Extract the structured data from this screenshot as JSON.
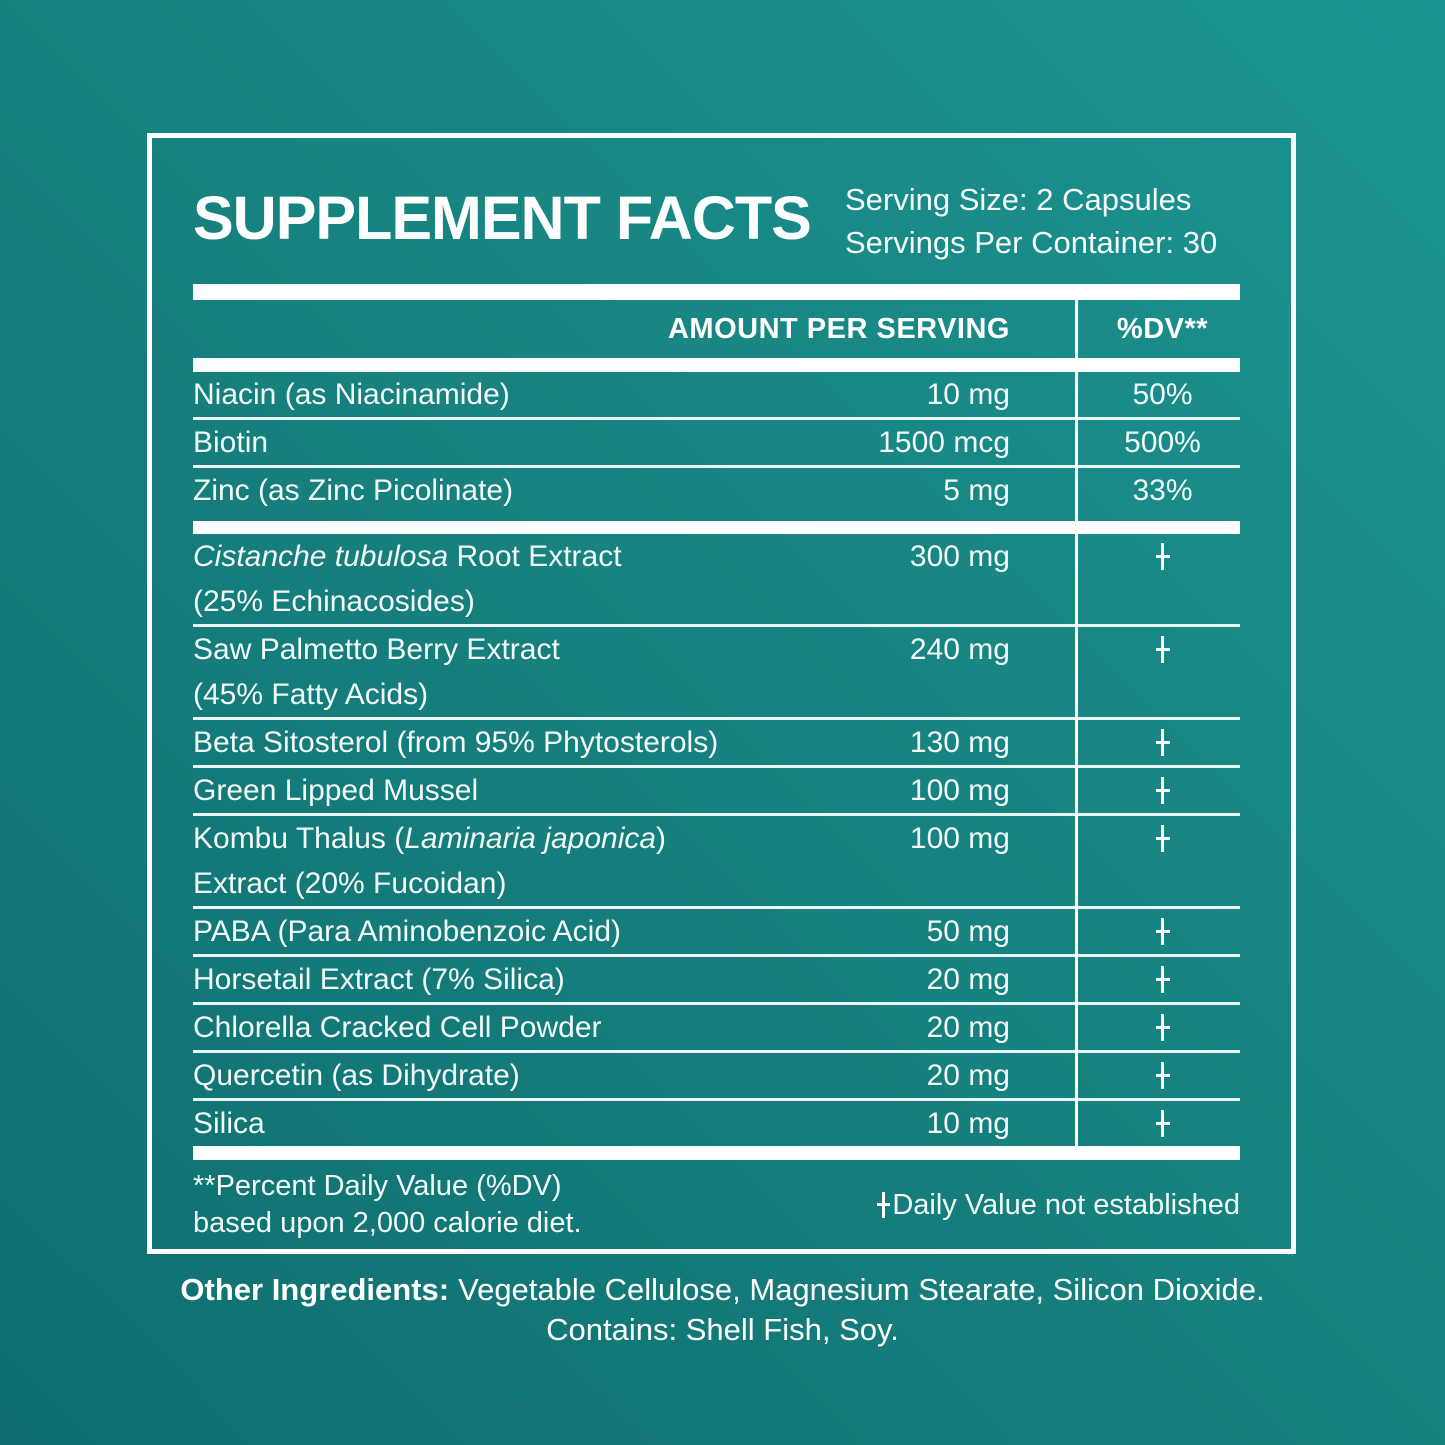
{
  "colors": {
    "background_light": "#1b9593",
    "background_dark": "#0e6e70",
    "line_white": "#ffffff",
    "text_white": "#f2faf9"
  },
  "panel": {
    "title": "SUPPLEMENT FACTS",
    "serving_size": "Serving Size: 2 Capsules",
    "servings_per_container": "Servings Per Container: 30"
  },
  "table": {
    "amount_header": "AMOUNT PER SERVING",
    "dv_header": "%DV**",
    "dagger_symbol": "†",
    "groups": [
      {
        "rows": [
          {
            "name_parts": [
              {
                "text": "Niacin (as Niacinamide)",
                "italic": false
              }
            ],
            "amount": "10 mg",
            "dv": "50%"
          },
          {
            "name_parts": [
              {
                "text": "Biotin",
                "italic": false
              }
            ],
            "amount": "1500 mcg",
            "dv": "500%"
          },
          {
            "name_parts": [
              {
                "text": "Zinc (as Zinc Picolinate)",
                "italic": false
              }
            ],
            "amount": "5 mg",
            "dv": "33%"
          }
        ]
      },
      {
        "rows": [
          {
            "name_parts": [
              {
                "text": "Cistanche tubulosa",
                "italic": true
              },
              {
                "text": " Root Extract",
                "italic": false
              }
            ],
            "line2": "(25% Echinacosides)",
            "amount": "300 mg",
            "dv": "†"
          },
          {
            "name_parts": [
              {
                "text": "Saw Palmetto Berry Extract",
                "italic": false
              }
            ],
            "line2": "(45% Fatty Acids)",
            "amount": "240 mg",
            "dv": "†"
          },
          {
            "name_parts": [
              {
                "text": "Beta Sitosterol (from 95% Phytosterols)",
                "italic": false
              }
            ],
            "amount": "130 mg",
            "dv": "†"
          },
          {
            "name_parts": [
              {
                "text": "Green Lipped Mussel",
                "italic": false
              }
            ],
            "amount": "100 mg",
            "dv": "†"
          },
          {
            "name_parts": [
              {
                "text": "Kombu Thalus (",
                "italic": false
              },
              {
                "text": "Laminaria japonica",
                "italic": true
              },
              {
                "text": ")",
                "italic": false
              }
            ],
            "line2": "Extract (20% Fucoidan)",
            "amount": "100 mg",
            "dv": "†"
          },
          {
            "name_parts": [
              {
                "text": "PABA (Para Aminobenzoic Acid)",
                "italic": false
              }
            ],
            "amount": "50 mg",
            "dv": "†"
          },
          {
            "name_parts": [
              {
                "text": "Horsetail Extract (7% Silica)",
                "italic": false
              }
            ],
            "amount": "20 mg",
            "dv": "†"
          },
          {
            "name_parts": [
              {
                "text": "Chlorella Cracked Cell Powder",
                "italic": false
              }
            ],
            "amount": "20 mg",
            "dv": "†"
          },
          {
            "name_parts": [
              {
                "text": "Quercetin (as Dihydrate)",
                "italic": false
              }
            ],
            "amount": "20 mg",
            "dv": "†"
          },
          {
            "name_parts": [
              {
                "text": "Silica",
                "italic": false
              }
            ],
            "amount": "10 mg",
            "dv": "†"
          }
        ]
      }
    ]
  },
  "footnotes": {
    "percent_dv_line1": "**Percent Daily Value (%DV)",
    "percent_dv_line2": "based upon 2,000 calorie diet.",
    "dagger_symbol": "†",
    "dagger_note": "Daily Value not established"
  },
  "other_ingredients": {
    "label": "Other Ingredients:",
    "items": "Vegetable Cellulose, Magnesium Stearate, Silicon Dioxide.",
    "contains": "Contains: Shell Fish, Soy."
  }
}
